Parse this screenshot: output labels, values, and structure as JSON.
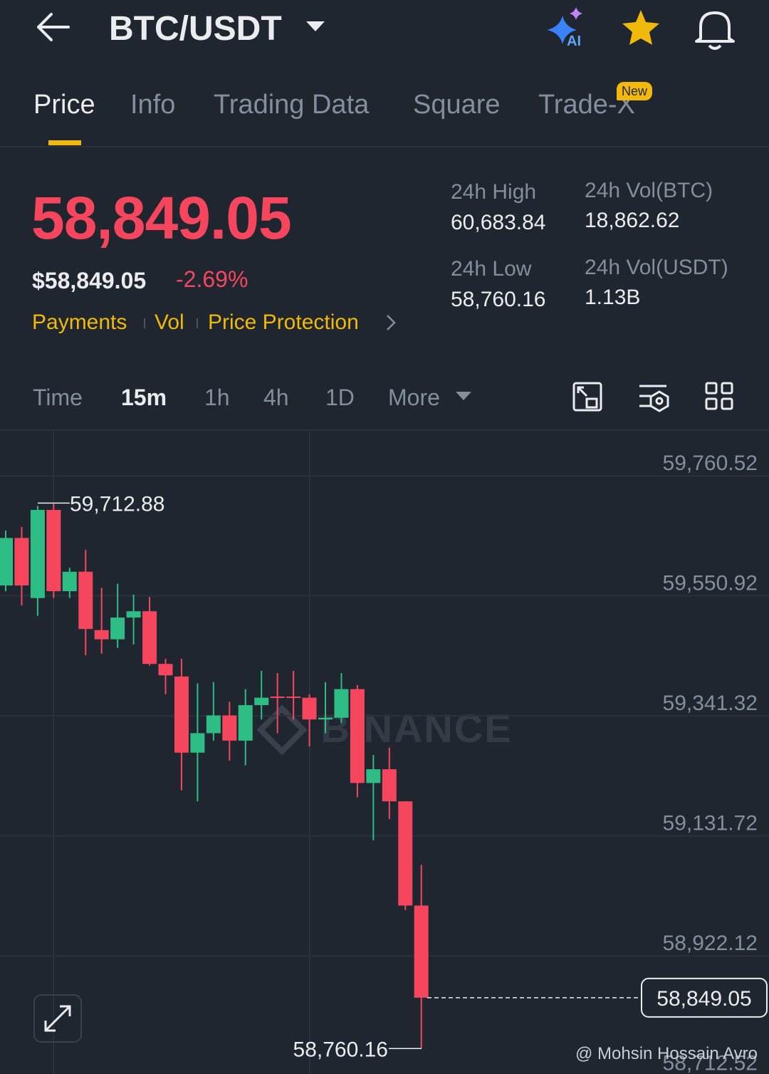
{
  "header": {
    "title": "BTC/USDT"
  },
  "tabs": [
    "Price",
    "Info",
    "Trading Data",
    "Square",
    "Trade-X"
  ],
  "new_badge": "New",
  "price": {
    "last": "58,849.05",
    "usd": "$58,849.05",
    "change": "-2.69%"
  },
  "links": [
    "Payments",
    "Vol",
    "Price Protection"
  ],
  "stats": [
    {
      "label": "24h High",
      "value": "60,683.84"
    },
    {
      "label": "24h Vol(BTC)",
      "value": "18,862.62"
    },
    {
      "label": "24h Low",
      "value": "58,760.16"
    },
    {
      "label": "24h Vol(USDT)",
      "value": "1.13B"
    }
  ],
  "intervals": [
    "Time",
    "15m",
    "1h",
    "4h",
    "1D",
    "More"
  ],
  "chart_data": {
    "type": "candlestick",
    "watermark": "BINANCE",
    "up_color": "#2ebd85",
    "down_color": "#f6465d",
    "open": [
      59569,
      59652,
      59547,
      59701,
      59559,
      59593,
      59491,
      59475,
      59513,
      59524,
      59432,
      59410,
      59277,
      59311,
      59342,
      59298,
      59360,
      59375,
      59375,
      59373,
      59335,
      59338,
      59388,
      59224,
      59248,
      59192,
      59010
    ],
    "high": [
      59665,
      59671,
      59708,
      59712.88,
      59600,
      59631,
      59565,
      59572,
      59553,
      59549,
      59441,
      59441,
      59398,
      59400,
      59366,
      59388,
      59420,
      59416,
      59420,
      59379,
      59400,
      59416,
      59395,
      59273,
      59286,
      59192,
      59081
    ],
    "low": [
      59559,
      59534,
      59516,
      59547,
      59547,
      59447,
      59450,
      59460,
      59466,
      59429,
      59379,
      59211,
      59192,
      59298,
      59263,
      59255,
      59335,
      59311,
      59335,
      59288,
      59311,
      59329,
      59199,
      59124,
      59161,
      59002,
      58760.16
    ],
    "close": [
      59652,
      59569,
      59701,
      59559,
      59593,
      59493,
      59475,
      59513,
      59524,
      59432,
      59412,
      59277,
      59311,
      59342,
      59298,
      59360,
      59373,
      59373,
      59373,
      59335,
      59338,
      59388,
      59224,
      59248,
      59192,
      59010,
      58849.05
    ],
    "ylim": [
      58712.52,
      59839
    ],
    "yticks": [
      {
        "value": 59760.52,
        "label": "59,760.52"
      },
      {
        "value": 59550.92,
        "label": "59,550.92"
      },
      {
        "value": 59341.32,
        "label": "59,341.32"
      },
      {
        "value": 59131.72,
        "label": "59,131.72"
      },
      {
        "value": 58922.12,
        "label": "58,922.12"
      },
      {
        "value": 58712.52,
        "label": "58,712.52"
      }
    ],
    "grid": true,
    "high_marker": {
      "value": 59712.88,
      "label": "59,712.88"
    },
    "low_marker": {
      "value": 58760.16,
      "label": "58,760.16"
    },
    "last_price": {
      "value": 58849.05,
      "label": "58,849.05"
    }
  },
  "credit": "@ Mohsin Hossain Avro"
}
